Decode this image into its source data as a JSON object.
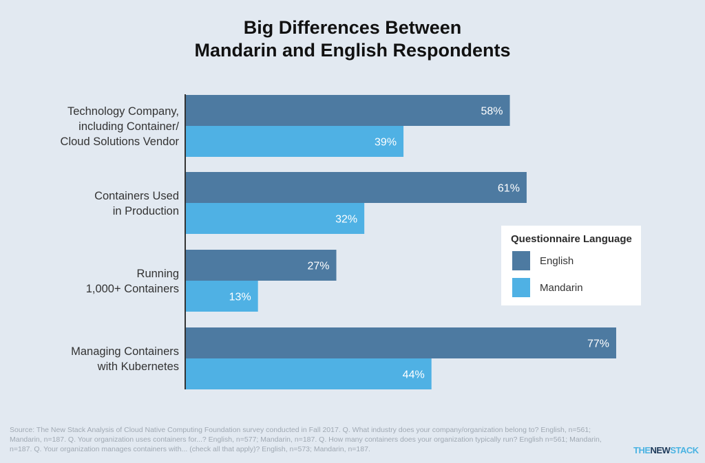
{
  "title_lines": [
    "Big Differences Between",
    "Mandarin and English Respondents"
  ],
  "chart_data": {
    "type": "bar",
    "orientation": "horizontal",
    "categories": [
      [
        "Technology Company,",
        "including Container/",
        "Cloud Solutions Vendor"
      ],
      [
        "Containers Used",
        "in Production"
      ],
      [
        "Running",
        "1,000+ Containers"
      ],
      [
        "Managing Containers",
        "with Kubernetes"
      ]
    ],
    "series": [
      {
        "name": "English",
        "color": "#4d7aa1",
        "values": [
          58,
          61,
          27,
          77
        ]
      },
      {
        "name": "Mandarin",
        "color": "#4fb1e4",
        "values": [
          39,
          32,
          13,
          44
        ]
      }
    ],
    "value_suffix": "%",
    "xlim": [
      0,
      77
    ],
    "grid": false,
    "legend_position": "right"
  },
  "legend": {
    "title": "Questionnaire Language",
    "items": [
      {
        "label": "English",
        "color": "#4d7aa1"
      },
      {
        "label": "Mandarin",
        "color": "#4fb1e4"
      }
    ]
  },
  "source": "Source: The New Stack Analysis of Cloud Native Computing Foundation survey conducted in Fall 2017. Q. What industry does your company/organization belong to? English, n=561; Mandarin, n=187. Q. Your organization uses containers for...? English, n=577; Mandarin, n=187. Q. How many containers does your organization typically run? English n=561; Mandarin, n=187. Q. Your organization manages containers with... (check all that apply)? English, n=573; Mandarin, n=187.",
  "logo": {
    "part1": "THE",
    "part2": "NEW",
    "part3": "STACK"
  }
}
